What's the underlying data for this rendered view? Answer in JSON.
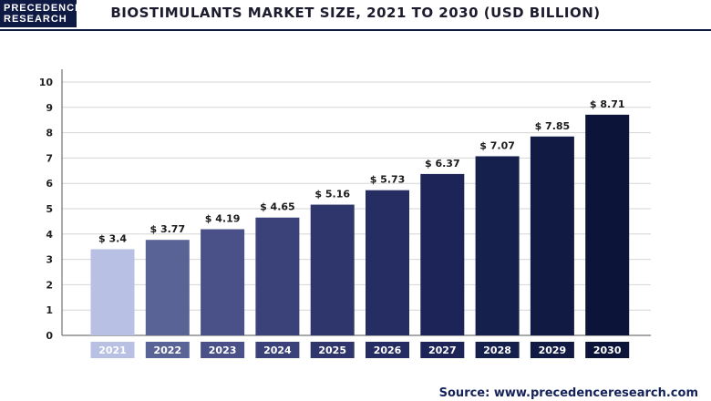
{
  "header": {
    "logo_line1": "PRECEDENCE",
    "logo_line2": "RESEARCH",
    "title": "BIOSTIMULANTS MARKET SIZE, 2021 TO 2030 (USD BILLION)"
  },
  "footer": {
    "source": "Source: www.precedenceresearch.com"
  },
  "chart_data": {
    "type": "bar",
    "title": "BIOSTIMULANTS MARKET SIZE, 2021 TO 2030 (USD BILLION)",
    "categories": [
      "2021",
      "2022",
      "2023",
      "2024",
      "2025",
      "2026",
      "2027",
      "2028",
      "2029",
      "2030"
    ],
    "values": [
      3.4,
      3.77,
      4.19,
      4.65,
      5.16,
      5.73,
      6.37,
      7.07,
      7.85,
      8.71
    ],
    "value_labels": [
      "$ 3.4",
      "$ 3.77",
      "$ 4.19",
      "$ 4.65",
      "$ 5.16",
      "$ 5.73",
      "$ 6.37",
      "$ 7.07",
      "$ 7.85",
      "$ 8.71"
    ],
    "yticks": [
      "0",
      "1",
      "2",
      "3",
      "4",
      "5",
      "6",
      "7",
      "8",
      "9",
      "10"
    ],
    "ylim": [
      0,
      10
    ],
    "xlabel": "",
    "ylabel": "",
    "grid": true,
    "legend": "none",
    "colors": [
      "#b8c1e3",
      "#5a6396",
      "#4a5188",
      "#3b427a",
      "#2e366c",
      "#252d63",
      "#1c2458",
      "#16204d",
      "#111a43",
      "#0c1539"
    ]
  }
}
